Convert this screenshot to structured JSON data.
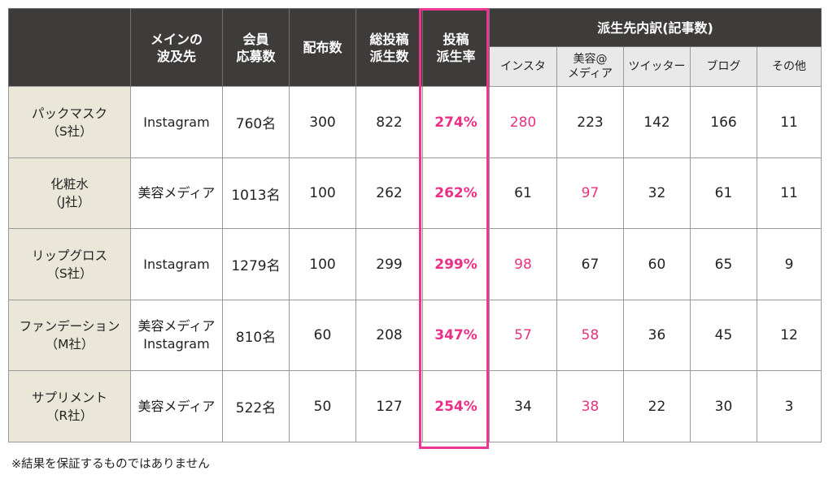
{
  "header": {
    "main_wave": "メインの\n波及先",
    "applicants": "会員\n応募数",
    "distributed": "配布数",
    "total_posts": "総投稿\n派生数",
    "post_rate": "投稿\n派生率",
    "breakdown": "派生先内訳(記事数)",
    "breakdown_cols": [
      "インスタ",
      "美容@\nメディア",
      "ツイッター",
      "ブログ",
      "その他"
    ]
  },
  "rows": [
    {
      "product": "パックマスク\n（S社）",
      "wave": "Instagram",
      "applicants": "760名",
      "distributed": "300",
      "total": "822",
      "rate": "274%",
      "insta": "280",
      "media": "223",
      "twitter": "142",
      "blog": "166",
      "other": "11"
    },
    {
      "product": "化粧水\n（J社）",
      "wave": "美容メディア",
      "applicants": "1013名",
      "distributed": "100",
      "total": "262",
      "rate": "262%",
      "insta": "61",
      "media": "97",
      "twitter": "32",
      "blog": "61",
      "other": "11"
    },
    {
      "product": "リップグロス\n（S社）",
      "wave": "Instagram",
      "applicants": "1279名",
      "distributed": "100",
      "total": "299",
      "rate": "299%",
      "insta": "98",
      "media": "67",
      "twitter": "60",
      "blog": "65",
      "other": "9"
    },
    {
      "product": "ファンデーション\n（M社）",
      "wave": "美容メディア\nInstagram",
      "applicants": "810名",
      "distributed": "60",
      "total": "208",
      "rate": "347%",
      "insta": "57",
      "media": "58",
      "twitter": "36",
      "blog": "45",
      "other": "12"
    },
    {
      "product": "サプリメント\n（R社）",
      "wave": "美容メディア",
      "applicants": "522名",
      "distributed": "50",
      "total": "127",
      "rate": "254%",
      "insta": "34",
      "media": "38",
      "twitter": "22",
      "blog": "30",
      "other": "3"
    }
  ],
  "footnote": "※結果を保証するものではありません",
  "colors": {
    "header_bg": "#3e3c3a",
    "row_header_bg": "#eae7d9",
    "highlight": "#ee3592",
    "accent_text": "#e8327f"
  }
}
